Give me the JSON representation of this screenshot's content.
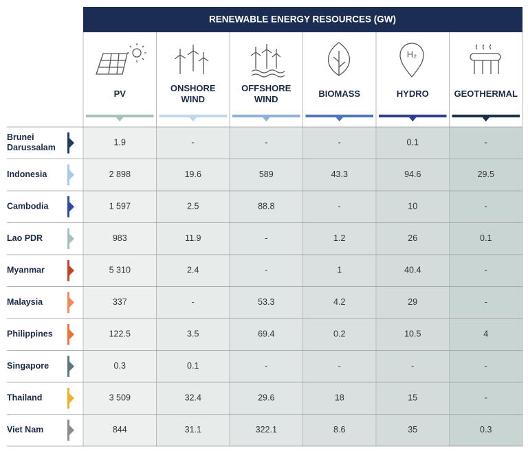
{
  "header": {
    "title": "RENEWABLE ENERGY RESOURCES (GW)"
  },
  "table": {
    "columns": [
      "PV",
      "ONSHORE WIND",
      "OFFSHORE WIND",
      "BIOMASS",
      "HYDRO",
      "GEOTHERMAL"
    ],
    "rows": [
      {
        "country": "Brunei Darussalam",
        "values": [
          "1.9",
          "-",
          "-",
          "-",
          "0.1",
          "-"
        ]
      },
      {
        "country": "Indonesia",
        "values": [
          "2 898",
          "19.6",
          "589",
          "43.3",
          "94.6",
          "29.5"
        ]
      },
      {
        "country": "Cambodia",
        "values": [
          "1 597",
          "2.5",
          "88.8",
          "-",
          "10",
          "-"
        ]
      },
      {
        "country": "Lao PDR",
        "values": [
          "983",
          "11.9",
          "-",
          "1.2",
          "26",
          "0.1"
        ]
      },
      {
        "country": "Myanmar",
        "values": [
          "5 310",
          "2.4",
          "-",
          "1",
          "40.4",
          "-"
        ]
      },
      {
        "country": "Malaysia",
        "values": [
          "337",
          "-",
          "53.3",
          "4.2",
          "29",
          "-"
        ]
      },
      {
        "country": "Philippines",
        "values": [
          "122.5",
          "3.5",
          "69.4",
          "0.2",
          "10.5",
          "4"
        ]
      },
      {
        "country": "Singapore",
        "values": [
          "0.3",
          "0.1",
          "-",
          "-",
          "-",
          "-"
        ]
      },
      {
        "country": "Thailand",
        "values": [
          "3 509",
          "32.4",
          "29.6",
          "18",
          "15",
          "-"
        ]
      },
      {
        "country": "Viet Nam",
        "values": [
          "844",
          "31.1",
          "322.1",
          "8.6",
          "35",
          "0.3"
        ]
      }
    ]
  }
}
